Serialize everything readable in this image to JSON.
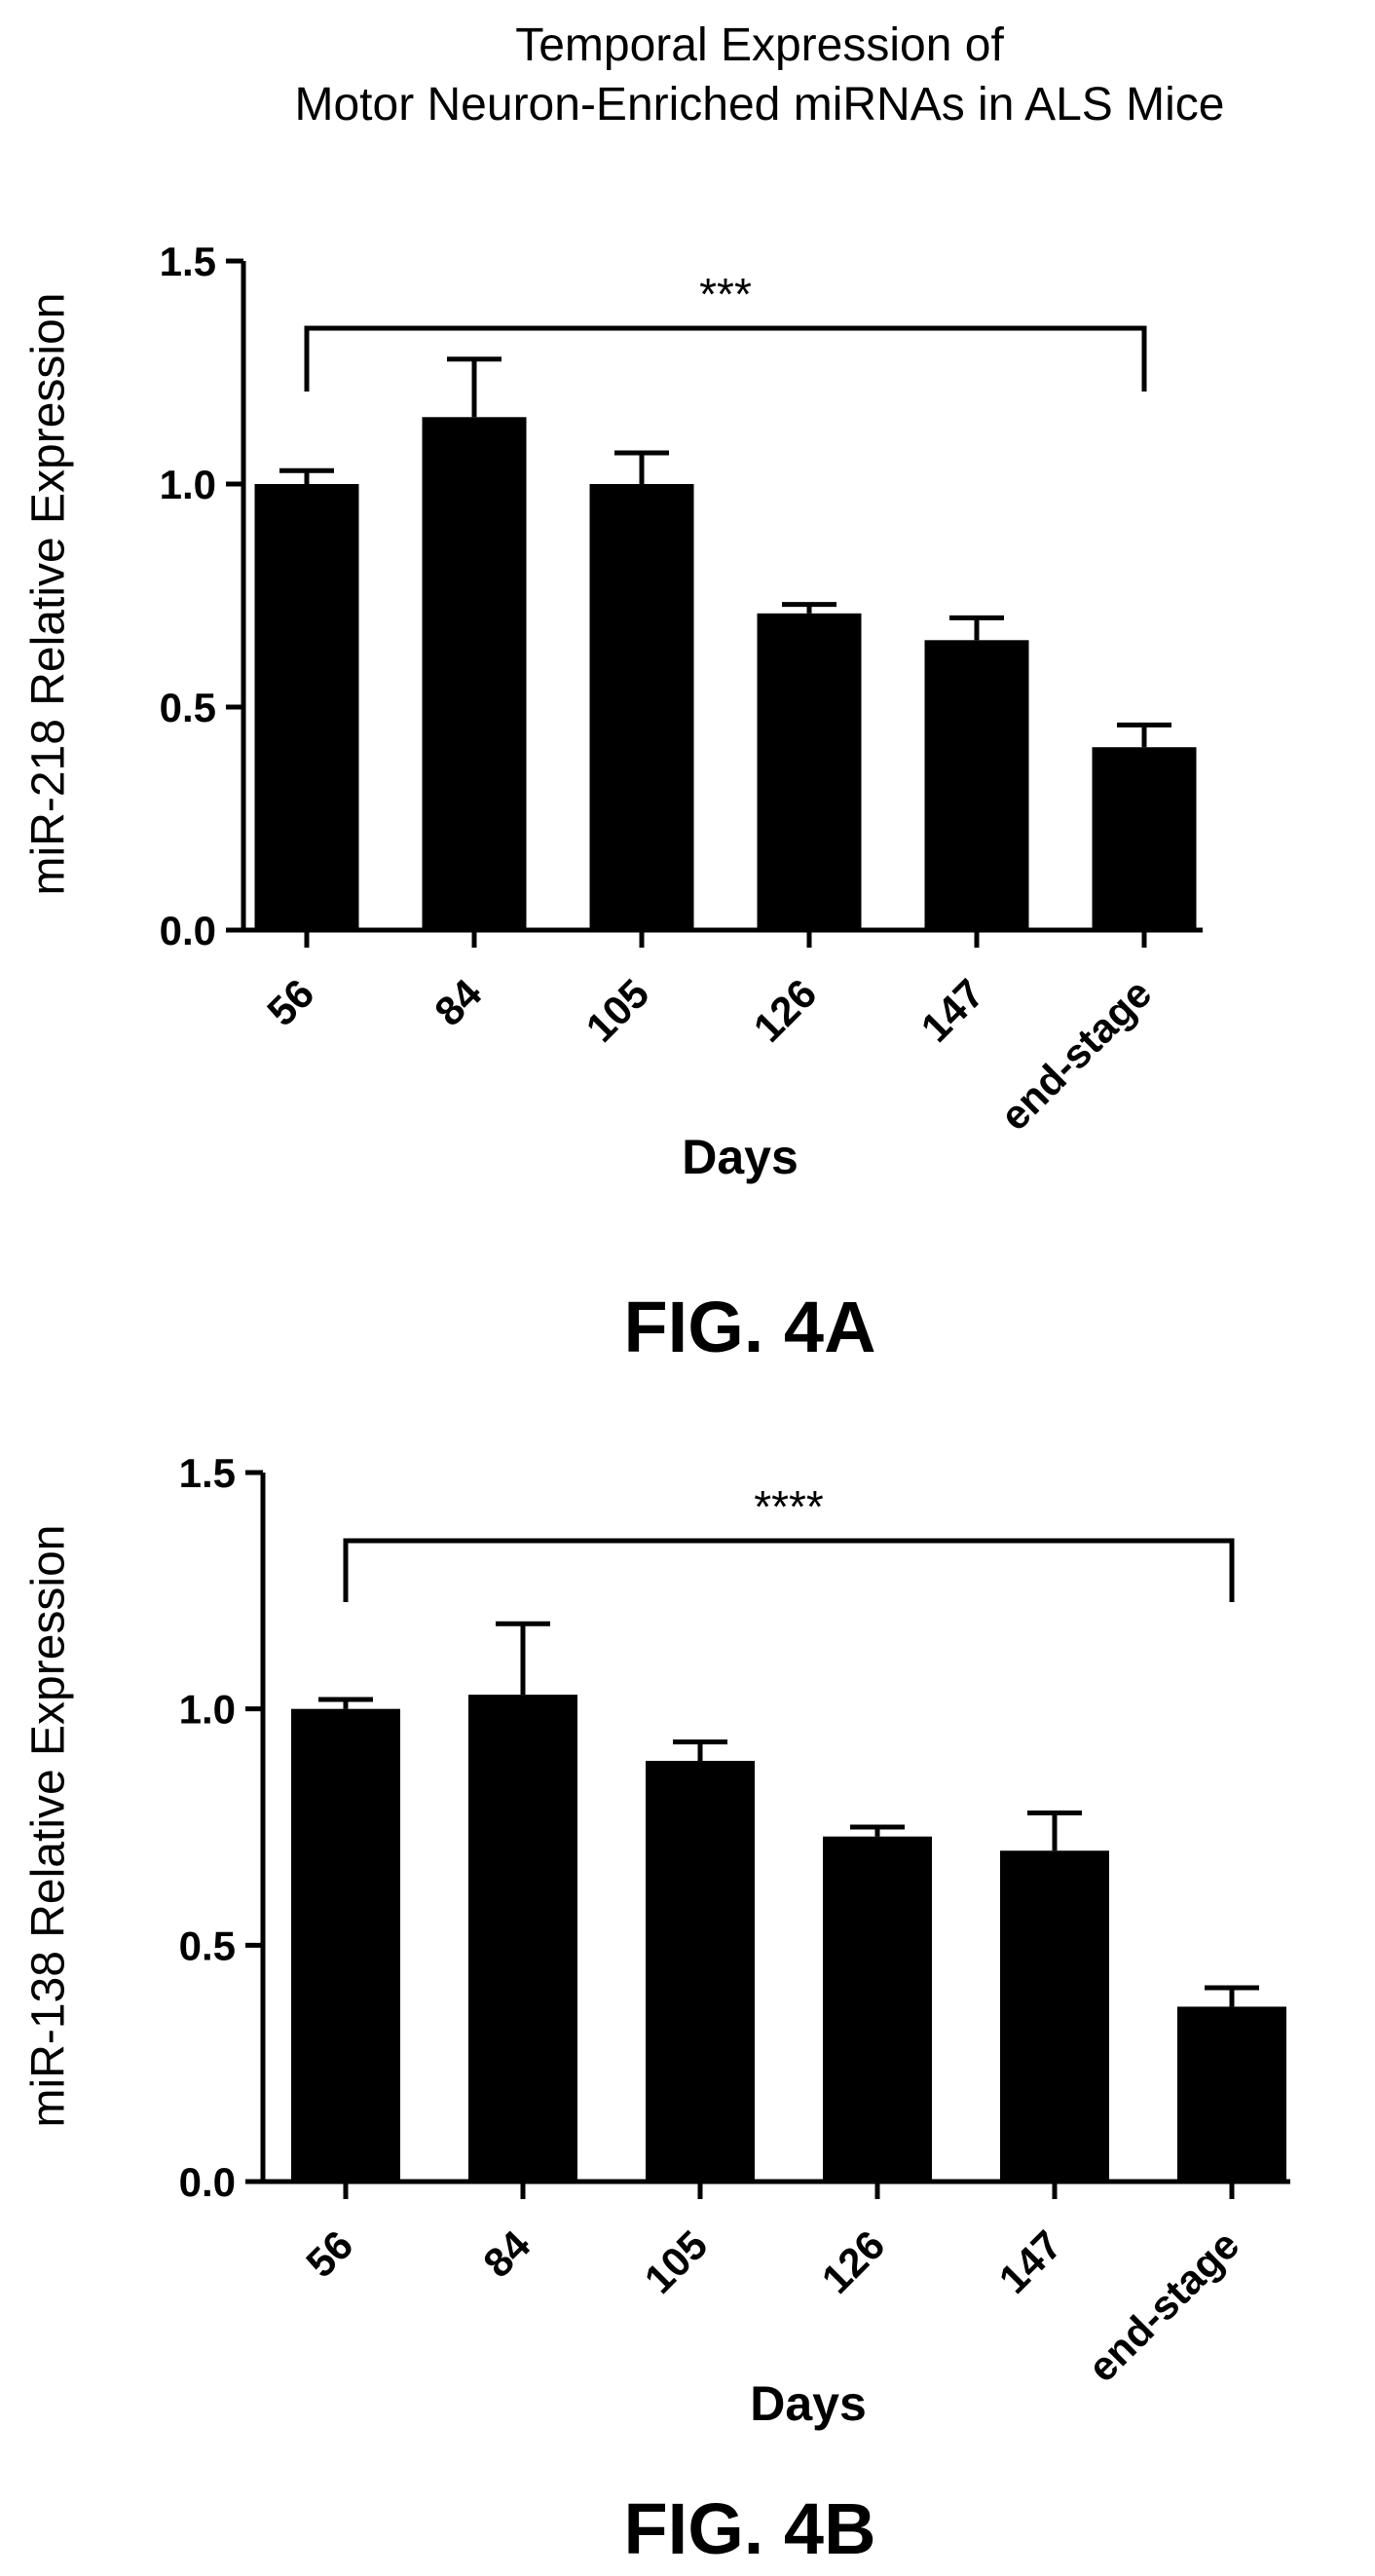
{
  "page_title_line1": "Temporal Expression of",
  "page_title_line2": "Motor Neuron-Enriched miRNAs in ALS Mice",
  "chart_data": [
    {
      "type": "bar",
      "figure_label": "FIG. 4A",
      "title": "Temporal Expression of Motor Neuron-Enriched miRNAs in ALS Mice",
      "xlabel": "Days",
      "ylabel": "miR-218 Relative Expression",
      "categories": [
        "56",
        "84",
        "105",
        "126",
        "147",
        "end-stage"
      ],
      "values": [
        1.0,
        1.15,
        1.0,
        0.71,
        0.65,
        0.41
      ],
      "errors": [
        0.03,
        0.13,
        0.07,
        0.02,
        0.05,
        0.05
      ],
      "ylim": [
        0,
        1.5
      ],
      "yticks": [
        "0.0",
        "0.5",
        "1.0",
        "1.5"
      ],
      "significance": {
        "from": "56",
        "to": "end-stage",
        "label": "***"
      },
      "bar_color": "#000000"
    },
    {
      "type": "bar",
      "figure_label": "FIG. 4B",
      "xlabel": "Days",
      "ylabel": "miR-138 Relative Expression",
      "categories": [
        "56",
        "84",
        "105",
        "126",
        "147",
        "end-stage"
      ],
      "values": [
        1.0,
        1.03,
        0.89,
        0.73,
        0.7,
        0.37
      ],
      "errors": [
        0.02,
        0.15,
        0.04,
        0.02,
        0.08,
        0.04
      ],
      "ylim": [
        0,
        1.5
      ],
      "yticks": [
        "0.0",
        "0.5",
        "1.0",
        "1.5"
      ],
      "significance": {
        "from": "56",
        "to": "end-stage",
        "label": "****"
      },
      "bar_color": "#000000"
    }
  ]
}
